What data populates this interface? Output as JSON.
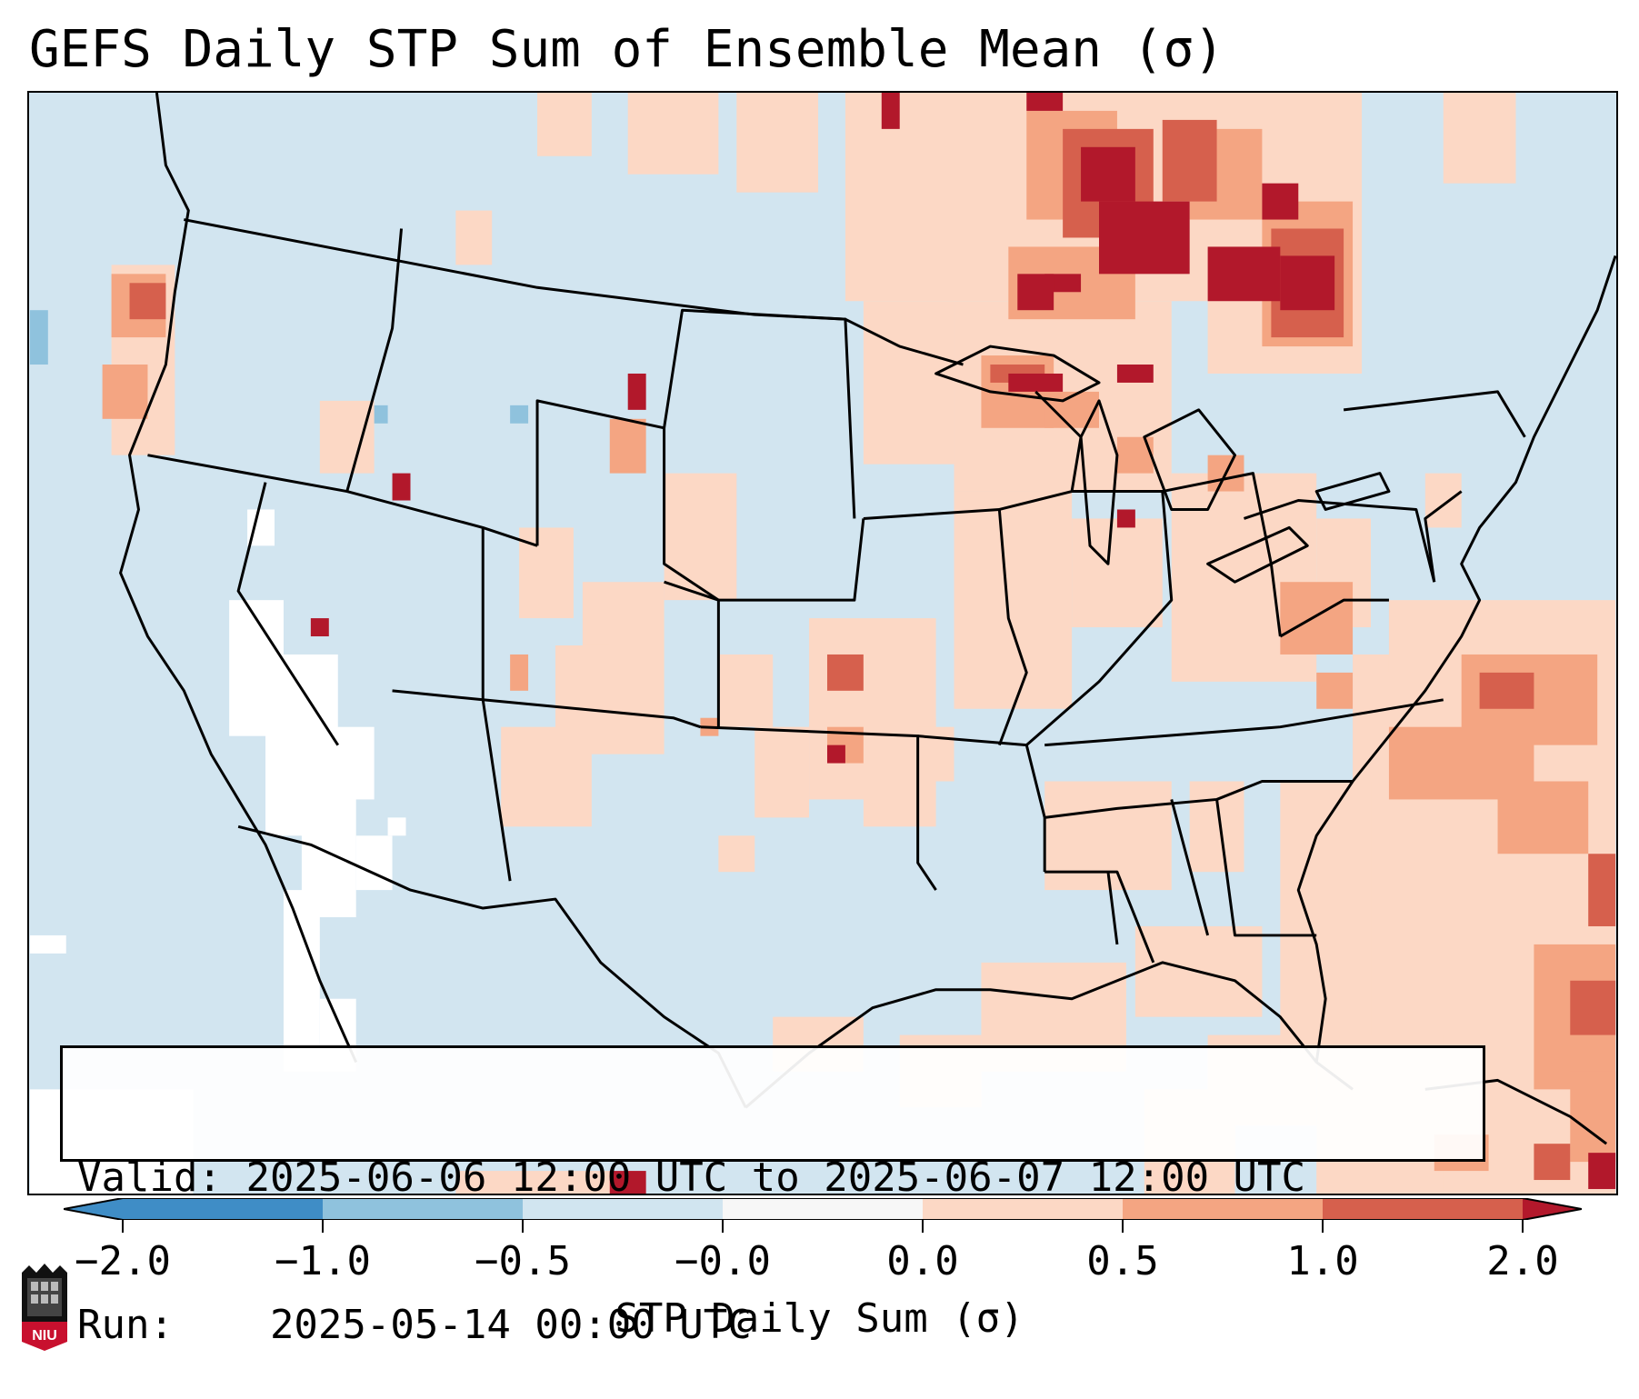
{
  "title": "GEFS Daily STP Sum of Ensemble Mean (σ)",
  "info": {
    "valid_label": "Valid:",
    "valid_value": "2025-06-06 12:00 UTC to 2025-06-07 12:00 UTC",
    "run_label": "Run:",
    "run_value": "2025-05-14 00:00 UTC"
  },
  "colorbar": {
    "label": "STP Daily Sum (σ)",
    "ticks": [
      "−2.0",
      "−1.0",
      "−0.5",
      "−0.0",
      "0.0",
      "0.5",
      "1.0",
      "2.0"
    ],
    "colors": [
      "#3f8dc6",
      "#8fc2dd",
      "#d1e5f0",
      "#f7f7f7",
      "#fcd8c5",
      "#f4a582",
      "#d6604d",
      "#b2182b"
    ]
  },
  "logo": {
    "text": "NIU",
    "name": "niu-logo"
  },
  "colors": {
    "ocean_land_base": "#d2e5f0",
    "near_zero_pos": "#fcd8c5",
    "moderate_pos": "#f4a582",
    "strong_pos": "#d6604d",
    "extreme_pos": "#b2182b",
    "near_zero_neg": "#f7f7f7",
    "neg": "#8fc2dd"
  }
}
